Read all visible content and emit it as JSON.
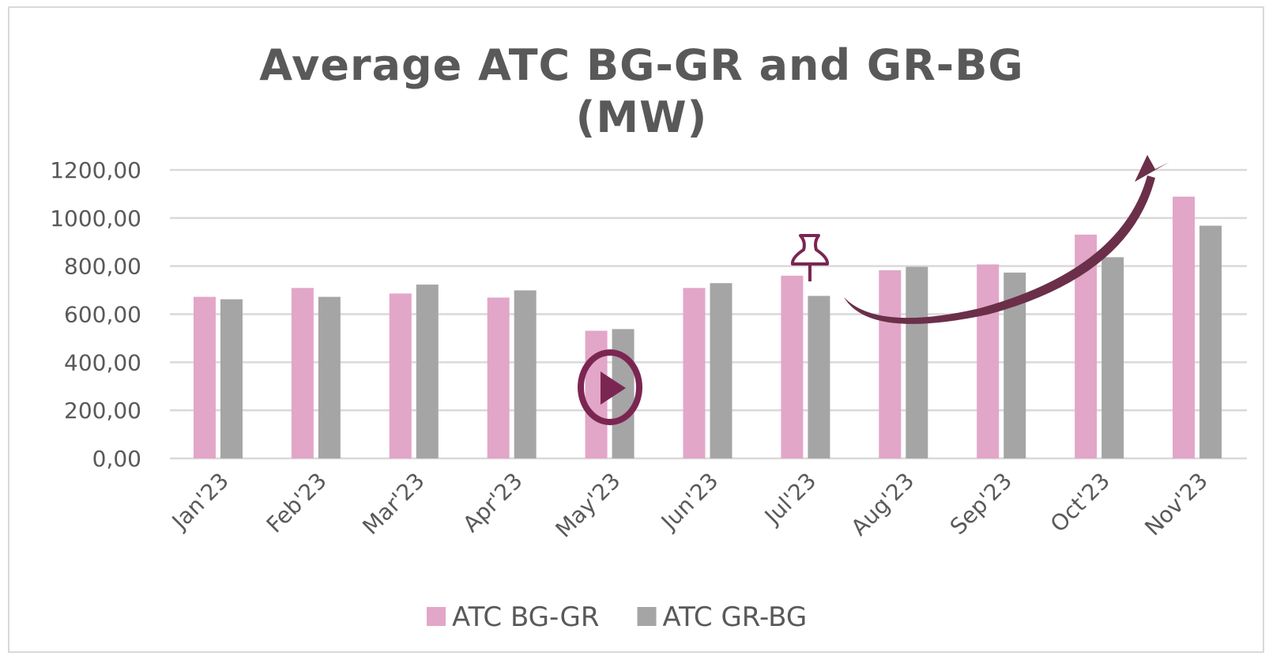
{
  "chart_data": {
    "type": "bar",
    "title": "Average ATC BG-GR and GR-BG (MW)",
    "categories": [
      "Jan'23",
      "Feb'23",
      "Mar'23",
      "Apr'23",
      "May'23",
      "Jun'23",
      "Jul'23",
      "Aug'23",
      "Sep'23",
      "Oct'23",
      "Nov'23"
    ],
    "series": [
      {
        "name": "ATC BG-GR",
        "color": "#e2a6c8",
        "values": [
          672,
          709,
          686,
          669,
          531,
          709,
          760,
          783,
          807,
          931,
          1089
        ]
      },
      {
        "name": "ATC GR-BG",
        "color": "#a5a5a5",
        "values": [
          662,
          672,
          723,
          699,
          538,
          729,
          676,
          797,
          773,
          837,
          968
        ]
      }
    ],
    "ylim": [
      0,
      1200
    ],
    "yticks": [
      {
        "value": 0,
        "label": "0,00"
      },
      {
        "value": 200,
        "label": "200,00"
      },
      {
        "value": 400,
        "label": "400,00"
      },
      {
        "value": 600,
        "label": "600,00"
      },
      {
        "value": 800,
        "label": "800,00"
      },
      {
        "value": 1000,
        "label": "1000,00"
      },
      {
        "value": 1200,
        "label": "1200,00"
      }
    ],
    "grid": true,
    "legend": "bottom"
  }
}
